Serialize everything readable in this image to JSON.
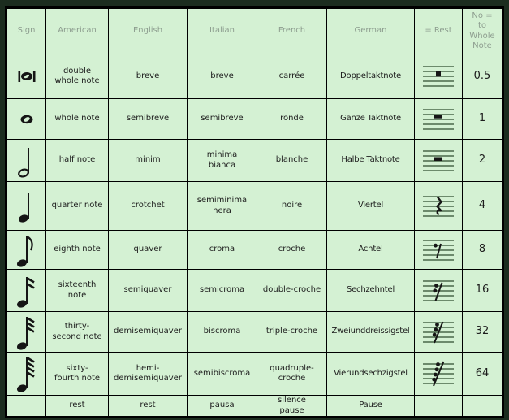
{
  "colors": {
    "page_background": "#1c2d1f",
    "cell_background": "#d4f1d3",
    "grid_line": "#000000",
    "header_text": "#8d9d8f",
    "body_text": "#1c1c1c",
    "staff_line": "#2e4d2e"
  },
  "table": {
    "headers": [
      {
        "id": "sign",
        "label": "Sign"
      },
      {
        "id": "american",
        "label": "American"
      },
      {
        "id": "english",
        "label": "English"
      },
      {
        "id": "italian",
        "label": "Italian"
      },
      {
        "id": "french",
        "label": "French"
      },
      {
        "id": "german",
        "label": "German"
      },
      {
        "id": "rest",
        "label": "= Rest"
      },
      {
        "id": "ratio",
        "label": "No =\nto\nWhole\nNote"
      }
    ],
    "rows": [
      {
        "sign": "double-whole-note",
        "american": "double\nwhole note",
        "english": "breve",
        "italian": "breve",
        "french": "carrée",
        "german": "Doppeltaktnote",
        "rest": "double-whole-rest",
        "ratio": "0.5"
      },
      {
        "sign": "whole-note",
        "american": "whole note",
        "english": "semibreve",
        "italian": "semibreve",
        "french": "ronde",
        "german": "Ganze Taktnote",
        "rest": "whole-rest",
        "ratio": "1"
      },
      {
        "sign": "half-note",
        "american": "half note",
        "english": "minim",
        "italian": "minima\nbianca",
        "french": "blanche",
        "german": "Halbe Taktnote",
        "rest": "half-rest",
        "ratio": "2"
      },
      {
        "sign": "quarter-note",
        "american": "quarter note",
        "english": "crotchet",
        "italian": "semiminima\nnera",
        "french": "noire",
        "german": "Viertel",
        "rest": "quarter-rest",
        "ratio": "4"
      },
      {
        "sign": "eighth-note",
        "american": "eighth note",
        "english": "quaver",
        "italian": "croma",
        "french": "croche",
        "german": "Achtel",
        "rest": "eighth-rest",
        "ratio": "8"
      },
      {
        "sign": "sixteenth-note",
        "american": "sixteenth\nnote",
        "english": "semiquaver",
        "italian": "semicroma",
        "french": "double-croche",
        "german": "Sechzehntel",
        "rest": "sixteenth-rest",
        "ratio": "16"
      },
      {
        "sign": "thirty-second-note",
        "american": "thirty-\nsecond note",
        "english": "demisemiquaver",
        "italian": "biscroma",
        "french": "triple-croche",
        "german": "Zweiunddreissigstel",
        "rest": "thirty-second-rest",
        "ratio": "32"
      },
      {
        "sign": "sixty-fourth-note",
        "american": "sixty-\nfourth note",
        "english": "hemi-\ndemisemiquaver",
        "italian": "semibiscroma",
        "french": "quadruple-\ncroche",
        "german": "Vierundsechzigstel",
        "rest": "sixty-fourth-rest",
        "ratio": "64"
      },
      {
        "sign": "",
        "american": "rest",
        "english": "rest",
        "italian": "pausa",
        "french": "silence\npause",
        "german": "Pause",
        "rest": "",
        "ratio": ""
      }
    ]
  }
}
